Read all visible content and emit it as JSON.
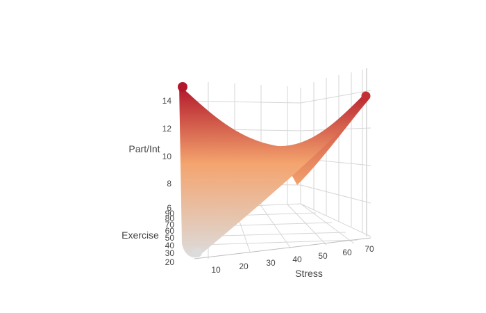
{
  "chart_data": {
    "type": "surface",
    "title": "",
    "colorscale": {
      "low": "#dcdcdc",
      "mid": "#f4a46e",
      "high": "#b2182b"
    },
    "x_axis": {
      "title": "Stress",
      "ticks": [
        10,
        20,
        30,
        40,
        50,
        60,
        70
      ],
      "range": [
        0,
        70
      ]
    },
    "y_axis": {
      "title": "Exercise",
      "ticks": [
        20,
        30,
        40,
        50,
        60,
        70,
        80,
        90
      ],
      "range": [
        20,
        90
      ]
    },
    "z_axis": {
      "title": "Part/Int",
      "ticks": [
        6,
        8,
        10,
        12,
        14
      ],
      "range": [
        6,
        15
      ]
    },
    "surface_corners": [
      {
        "stress": 0,
        "exercise": 90,
        "part_int": 14.9
      },
      {
        "stress": 70,
        "exercise": 90,
        "part_int": 14.2
      },
      {
        "stress": 0,
        "exercise": 20,
        "part_int": 6.2
      },
      {
        "stress": 70,
        "exercise": 20,
        "part_int": 7.9
      }
    ],
    "surface_saddle_min": {
      "stress": 40,
      "exercise": 90,
      "part_int": 10.0
    }
  }
}
